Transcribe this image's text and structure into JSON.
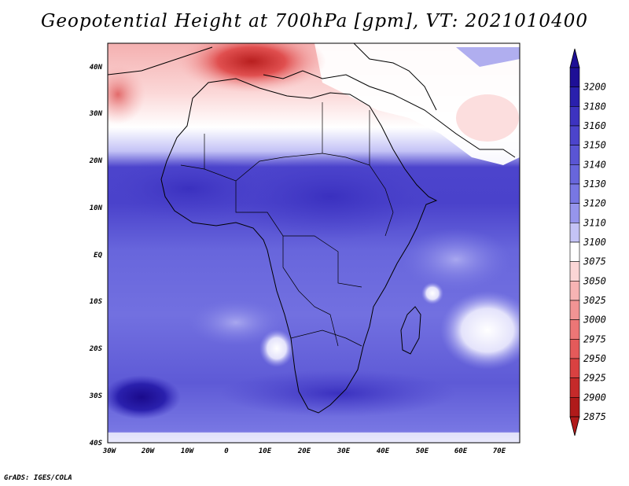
{
  "title": "Geopotential Height at 700hPa [gpm], VT: 2021010400",
  "credit": "GrADS: IGES/COLA",
  "map": {
    "lat_labels": [
      "40N",
      "30N",
      "20N",
      "10N",
      "EQ",
      "10S",
      "20S",
      "30S",
      "40S"
    ],
    "lon_labels": [
      "30W",
      "20W",
      "10W",
      "0",
      "10E",
      "20E",
      "30E",
      "40E",
      "50E",
      "60E",
      "70E"
    ]
  },
  "colorbar": {
    "levels": [
      "3200",
      "3180",
      "3160",
      "3150",
      "3140",
      "3130",
      "3120",
      "3110",
      "3100",
      "3075",
      "3050",
      "3025",
      "3000",
      "2975",
      "2950",
      "2925",
      "2900",
      "2875"
    ],
    "colors": [
      "#1e0f96",
      "#2a20ad",
      "#3d33c0",
      "#4c44cc",
      "#5a55d4",
      "#6866dc",
      "#7877e3",
      "#9695ec",
      "#c4c3f6",
      "#ffffff",
      "#fbd6d6",
      "#f7b4b4",
      "#f29494",
      "#ec7676",
      "#e45a5a",
      "#d94141",
      "#c52a2a",
      "#b01a1a"
    ]
  }
}
